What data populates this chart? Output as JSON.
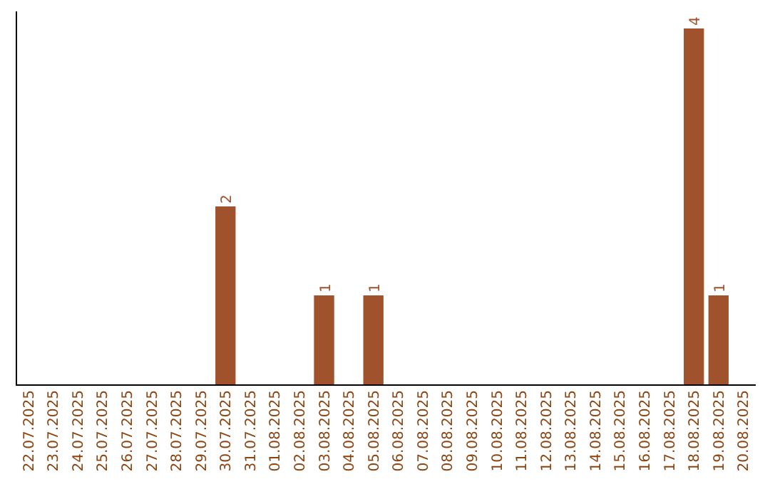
{
  "chart_data": {
    "type": "bar",
    "categories": [
      "22.07.2025",
      "23.07.2025",
      "24.07.2025",
      "25.07.2025",
      "26.07.2025",
      "27.07.2025",
      "28.07.2025",
      "29.07.2025",
      "30.07.2025",
      "31.07.2025",
      "01.08.2025",
      "02.08.2025",
      "03.08.2025",
      "04.08.2025",
      "05.08.2025",
      "06.08.2025",
      "07.08.2025",
      "08.08.2025",
      "09.08.2025",
      "10.08.2025",
      "11.08.2025",
      "12.08.2025",
      "13.08.2025",
      "14.08.2025",
      "15.08.2025",
      "16.08.2025",
      "17.08.2025",
      "18.08.2025",
      "19.08.2025",
      "20.08.2025"
    ],
    "values": [
      0,
      0,
      0,
      0,
      0,
      0,
      0,
      0,
      2,
      0,
      0,
      0,
      1,
      0,
      1,
      0,
      0,
      0,
      0,
      0,
      0,
      0,
      0,
      0,
      0,
      0,
      0,
      4,
      1,
      0
    ],
    "value_labels": [
      null,
      null,
      null,
      null,
      null,
      null,
      null,
      null,
      "2",
      null,
      null,
      null,
      "1",
      null,
      "1",
      null,
      null,
      null,
      null,
      null,
      null,
      null,
      null,
      null,
      null,
      null,
      null,
      "4",
      "1",
      null
    ],
    "color": "#a0522d",
    "ylim": [
      0,
      4
    ],
    "tick_labels": "x"
  }
}
